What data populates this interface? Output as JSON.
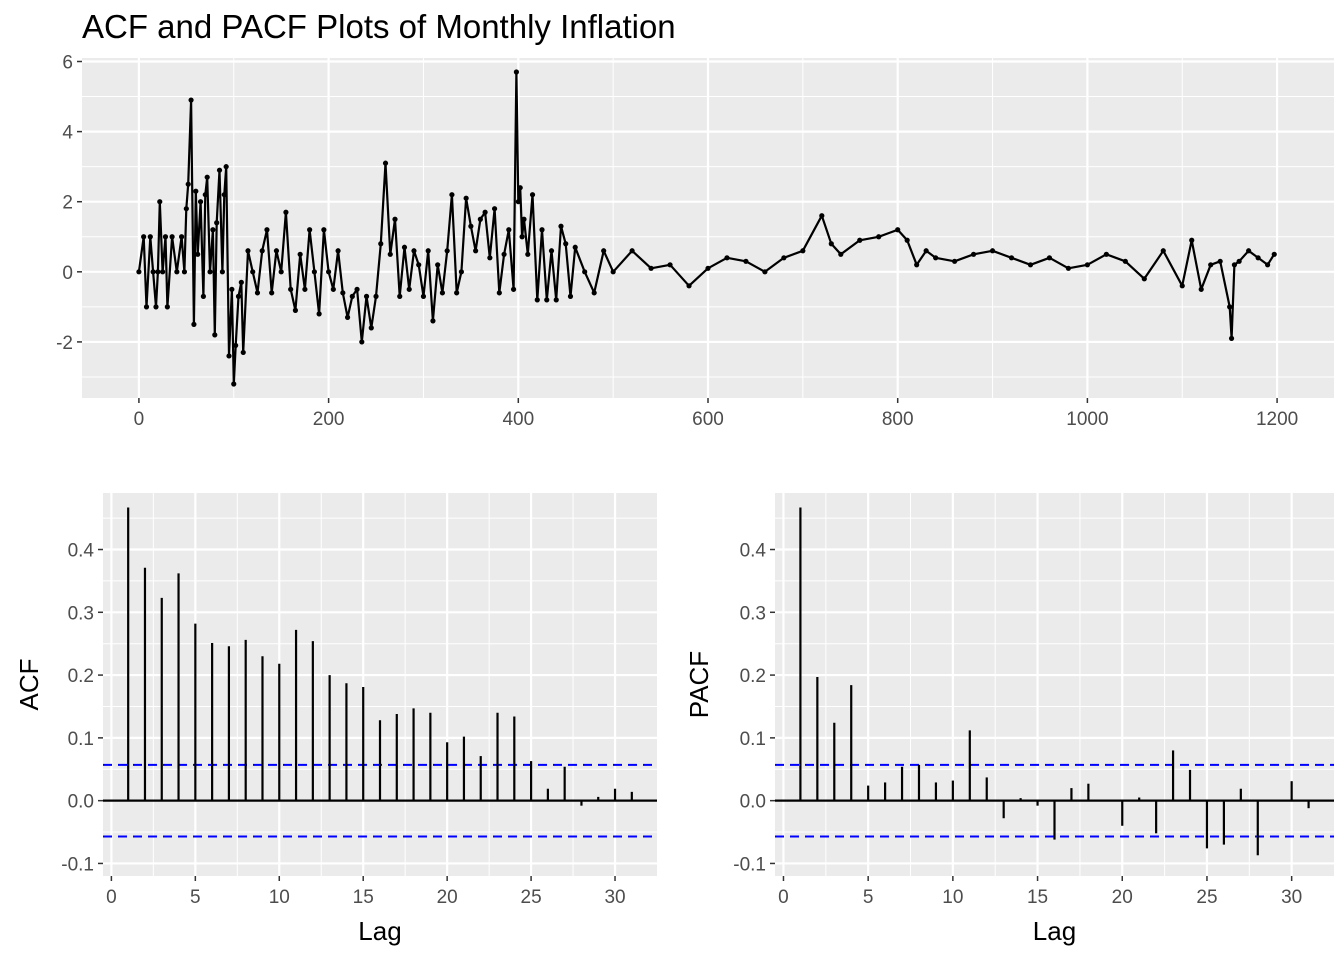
{
  "title": "ACF and PACF Plots of Monthly Inflation",
  "chart_data": [
    {
      "type": "line",
      "title": "ACF and PACF Plots of Monthly Inflation",
      "xlabel": "",
      "ylabel": "",
      "xlim": [
        -60,
        1260
      ],
      "ylim": [
        -3.6,
        6.1
      ],
      "x_ticks": [
        0,
        200,
        400,
        600,
        800,
        1000,
        1200
      ],
      "y_ticks": [
        -2,
        0,
        2,
        4,
        6
      ],
      "grid": true,
      "markers": true,
      "color": "#000000",
      "series": [
        {
          "x": [
            0,
            5,
            8,
            12,
            15,
            18,
            20,
            22,
            25,
            28,
            30,
            35,
            40,
            45,
            48,
            50,
            52,
            55,
            58,
            60,
            62,
            65,
            68,
            70,
            72,
            75,
            78,
            80,
            82,
            85,
            88,
            90,
            92,
            95,
            98,
            100,
            102,
            105,
            108,
            110,
            115,
            120,
            125,
            130,
            135,
            140,
            145,
            150,
            155,
            160,
            165,
            170,
            175,
            180,
            185,
            190,
            195,
            200,
            205,
            210,
            215,
            220,
            225,
            230,
            235,
            240,
            245,
            250,
            255,
            260,
            265,
            270,
            275,
            280,
            285,
            290,
            295,
            300,
            305,
            310,
            315,
            320,
            325,
            330,
            335,
            340,
            345,
            350,
            355,
            360,
            365,
            370,
            375,
            380,
            385,
            390,
            395,
            398,
            400,
            402,
            404,
            406,
            410,
            415,
            420,
            425,
            430,
            435,
            440,
            445,
            450,
            455,
            460,
            470,
            480,
            490,
            500,
            520,
            540,
            560,
            580,
            600,
            620,
            640,
            660,
            680,
            700,
            720,
            730,
            740,
            760,
            780,
            800,
            810,
            820,
            830,
            840,
            860,
            880,
            900,
            920,
            940,
            960,
            980,
            1000,
            1020,
            1040,
            1060,
            1080,
            1100,
            1110,
            1120,
            1130,
            1140,
            1150,
            1152,
            1155,
            1160,
            1170,
            1180,
            1190,
            1197
          ],
          "y": [
            0,
            1,
            -1,
            1,
            0,
            -1,
            0,
            2,
            0,
            1,
            -1,
            1,
            0,
            1,
            0,
            1.8,
            2.5,
            4.9,
            -1.5,
            2.3,
            0.5,
            2,
            -0.7,
            2.2,
            2.7,
            0,
            1.2,
            -1.8,
            1.4,
            2.9,
            0,
            2.2,
            3.0,
            -2.4,
            -0.5,
            -3.2,
            -2.1,
            -0.7,
            -0.3,
            -2.3,
            0.6,
            0,
            -0.6,
            0.6,
            1.2,
            -0.6,
            0.6,
            0,
            1.7,
            -0.5,
            -1.1,
            0.5,
            -0.5,
            1.2,
            0,
            -1.2,
            1.2,
            0,
            -0.5,
            0.6,
            -0.6,
            -1.3,
            -0.7,
            -0.5,
            -2.0,
            -0.7,
            -1.6,
            -0.7,
            0.8,
            3.1,
            0.5,
            1.5,
            -0.7,
            0.7,
            -0.5,
            0.6,
            0.2,
            -0.7,
            0.6,
            -1.4,
            0.2,
            -0.6,
            0.6,
            2.2,
            -0.6,
            0,
            2.1,
            1.3,
            0.6,
            1.5,
            1.7,
            0.4,
            1.8,
            -0.6,
            0.5,
            1.2,
            -0.5,
            5.7,
            2.0,
            2.4,
            1.0,
            1.5,
            0.5,
            2.2,
            -0.8,
            1.2,
            -0.8,
            0.6,
            -0.8,
            1.3,
            0.8,
            -0.7,
            0.7,
            0,
            -0.6,
            0.6,
            0,
            0.6,
            0.1,
            0.2,
            -0.4,
            0.1,
            0.4,
            0.3,
            0,
            0.4,
            0.6,
            1.6,
            0.8,
            0.5,
            0.9,
            1.0,
            1.2,
            0.9,
            0.2,
            0.6,
            0.4,
            0.3,
            0.5,
            0.6,
            0.4,
            0.2,
            0.4,
            0.1,
            0.2,
            0.5,
            0.3,
            -0.2,
            0.6,
            -0.4,
            0.9,
            -0.5,
            0.2,
            0.3,
            -1.0,
            -1.9,
            0.2,
            0.3,
            0.6,
            0.4,
            0.2,
            0.5
          ]
        }
      ]
    },
    {
      "type": "bar",
      "ylabel": "ACF",
      "xlabel": "Lag",
      "xlim": [
        -0.5,
        32.5
      ],
      "ylim": [
        -0.12,
        0.49
      ],
      "x_ticks": [
        0,
        5,
        10,
        15,
        20,
        25,
        30
      ],
      "y_ticks": [
        -0.1,
        0.0,
        0.1,
        0.2,
        0.3,
        0.4
      ],
      "y_tick_labels": [
        "-0.1",
        "0.0",
        "0.1",
        "0.2",
        "0.3",
        "0.4"
      ],
      "confidence_band": [
        -0.057,
        0.057
      ],
      "band_color": "#0000ff",
      "lags": [
        1,
        2,
        3,
        4,
        5,
        6,
        7,
        8,
        9,
        10,
        11,
        12,
        13,
        14,
        15,
        16,
        17,
        18,
        19,
        20,
        21,
        22,
        23,
        24,
        25,
        26,
        27,
        28,
        29,
        30,
        31
      ],
      "values": [
        0.467,
        0.371,
        0.323,
        0.362,
        0.282,
        0.251,
        0.246,
        0.256,
        0.23,
        0.218,
        0.272,
        0.254,
        0.2,
        0.187,
        0.181,
        0.128,
        0.138,
        0.147,
        0.14,
        0.093,
        0.102,
        0.071,
        0.14,
        0.134,
        0.063,
        0.019,
        0.054,
        -0.008,
        0.006,
        0.019,
        0.014
      ]
    },
    {
      "type": "bar",
      "ylabel": "PACF",
      "xlabel": "Lag",
      "xlim": [
        -0.5,
        32.5
      ],
      "ylim": [
        -0.12,
        0.49
      ],
      "x_ticks": [
        0,
        5,
        10,
        15,
        20,
        25,
        30
      ],
      "y_ticks": [
        -0.1,
        0.0,
        0.1,
        0.2,
        0.3,
        0.4
      ],
      "y_tick_labels": [
        "-0.1",
        "0.0",
        "0.1",
        "0.2",
        "0.3",
        "0.4"
      ],
      "confidence_band": [
        -0.057,
        0.057
      ],
      "band_color": "#0000ff",
      "lags": [
        1,
        2,
        3,
        4,
        5,
        6,
        7,
        8,
        9,
        10,
        11,
        12,
        13,
        14,
        15,
        16,
        17,
        18,
        19,
        20,
        21,
        22,
        23,
        24,
        25,
        26,
        27,
        28,
        29,
        30,
        31
      ],
      "values": [
        0.467,
        0.197,
        0.124,
        0.184,
        0.024,
        0.029,
        0.054,
        0.057,
        0.029,
        0.032,
        0.112,
        0.037,
        -0.028,
        0.004,
        -0.008,
        -0.062,
        0.02,
        0.027,
        0.0,
        -0.04,
        0.005,
        -0.052,
        0.08,
        0.049,
        -0.076,
        -0.07,
        0.019,
        -0.087,
        0.0,
        0.031,
        -0.012
      ]
    }
  ]
}
